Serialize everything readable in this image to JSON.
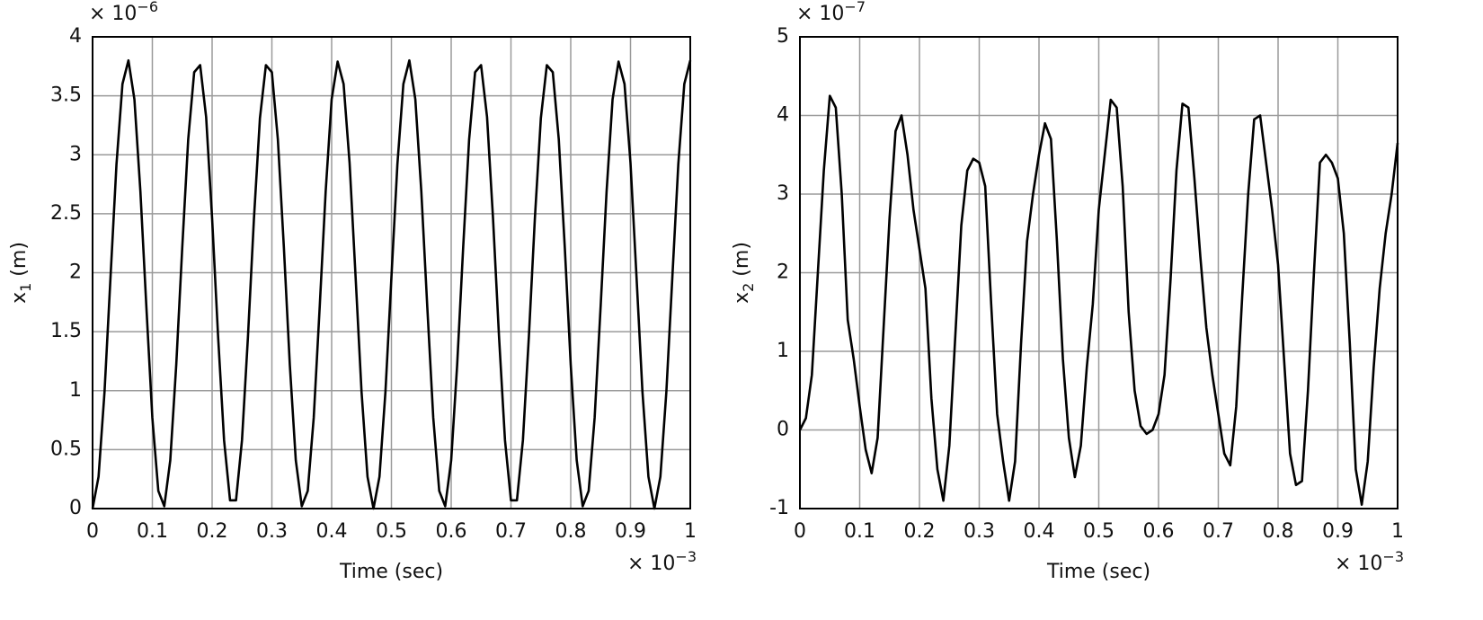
{
  "chart_data": [
    {
      "type": "line",
      "color": "#000000",
      "grid": true,
      "y_multiplier": {
        "base": "× 10",
        "exponent": "−6"
      },
      "x_multiplier": {
        "base": "× 10",
        "exponent": "−3"
      },
      "ylabel": {
        "base": "x",
        "sub": "1",
        "rest": " (m)"
      },
      "xlabel": "Time (sec)",
      "xlim": [
        0,
        1
      ],
      "xticks": [
        0,
        0.1,
        0.2,
        0.3,
        0.4,
        0.5,
        0.6,
        0.7,
        0.8,
        0.9,
        1
      ],
      "ylim": [
        0,
        4
      ],
      "yticks": [
        0,
        0.5,
        1,
        1.5,
        2,
        2.5,
        3,
        3.5,
        4
      ],
      "x": [
        0,
        0.01,
        0.02,
        0.03,
        0.04,
        0.05,
        0.06,
        0.07,
        0.08,
        0.09,
        0.1,
        0.11,
        0.12,
        0.13,
        0.14,
        0.15,
        0.16,
        0.17,
        0.18,
        0.19,
        0.2,
        0.21,
        0.22,
        0.23,
        0.24,
        0.25,
        0.26,
        0.27,
        0.28,
        0.29,
        0.3,
        0.31,
        0.32,
        0.33,
        0.34,
        0.35,
        0.36,
        0.37,
        0.38,
        0.39,
        0.4,
        0.41,
        0.42,
        0.43,
        0.44,
        0.45,
        0.46,
        0.47,
        0.48,
        0.49,
        0.5,
        0.51,
        0.52,
        0.53,
        0.54,
        0.55,
        0.56,
        0.57,
        0.58,
        0.59,
        0.6,
        0.61,
        0.62,
        0.63,
        0.64,
        0.65,
        0.66,
        0.67,
        0.68,
        0.69,
        0.7,
        0.71,
        0.72,
        0.73,
        0.74,
        0.75,
        0.76,
        0.77,
        0.78,
        0.79,
        0.8,
        0.81,
        0.82,
        0.83,
        0.84,
        0.85,
        0.86,
        0.87,
        0.88,
        0.89,
        0.9,
        0.91,
        0.92,
        0.93,
        0.94,
        0.95,
        0.96,
        0.97,
        0.98,
        0.99,
        1
      ],
      "values": [
        0,
        0.27,
        0.99,
        1.96,
        2.92,
        3.6,
        3.8,
        3.47,
        2.69,
        1.71,
        0.77,
        0.15,
        0.02,
        0.41,
        1.22,
        2.21,
        3.13,
        3.7,
        3.76,
        3.32,
        2.46,
        1.46,
        0.58,
        0.07,
        0.07,
        0.58,
        1.46,
        2.46,
        3.31,
        3.76,
        3.7,
        3.13,
        2.22,
        1.22,
        0.41,
        0.02,
        0.15,
        0.77,
        1.71,
        2.69,
        3.47,
        3.79,
        3.6,
        2.93,
        1.97,
        0.99,
        0.27,
        0,
        0.27,
        0.99,
        1.96,
        2.92,
        3.6,
        3.8,
        3.47,
        2.69,
        1.71,
        0.77,
        0.15,
        0.02,
        0.41,
        1.22,
        2.21,
        3.13,
        3.7,
        3.76,
        3.32,
        2.46,
        1.46,
        0.58,
        0.07,
        0.07,
        0.58,
        1.46,
        2.46,
        3.31,
        3.76,
        3.7,
        3.13,
        2.22,
        1.22,
        0.41,
        0.02,
        0.15,
        0.77,
        1.71,
        2.69,
        3.47,
        3.79,
        3.6,
        2.93,
        1.97,
        0.99,
        0.27,
        0,
        0.27,
        0.99,
        1.96,
        2.92,
        3.6,
        3.8
      ]
    },
    {
      "type": "line",
      "color": "#000000",
      "grid": true,
      "y_multiplier": {
        "base": "× 10",
        "exponent": "−7"
      },
      "x_multiplier": {
        "base": "× 10",
        "exponent": "−3"
      },
      "ylabel": {
        "base": "x",
        "sub": "2",
        "rest": " (m)"
      },
      "xlabel": "Time (sec)",
      "xlim": [
        0,
        1
      ],
      "xticks": [
        0,
        0.1,
        0.2,
        0.3,
        0.4,
        0.5,
        0.6,
        0.7,
        0.8,
        0.9,
        1
      ],
      "ylim": [
        -1,
        5
      ],
      "yticks": [
        -1,
        0,
        1,
        2,
        3,
        4,
        5
      ],
      "x": [
        0,
        0.01,
        0.02,
        0.03,
        0.04,
        0.05,
        0.06,
        0.07,
        0.08,
        0.09,
        0.1,
        0.11,
        0.12,
        0.13,
        0.14,
        0.15,
        0.16,
        0.17,
        0.18,
        0.19,
        0.2,
        0.21,
        0.22,
        0.23,
        0.24,
        0.25,
        0.26,
        0.27,
        0.28,
        0.29,
        0.3,
        0.31,
        0.32,
        0.33,
        0.34,
        0.35,
        0.36,
        0.37,
        0.38,
        0.39,
        0.4,
        0.41,
        0.42,
        0.43,
        0.44,
        0.45,
        0.46,
        0.47,
        0.48,
        0.49,
        0.5,
        0.51,
        0.52,
        0.53,
        0.54,
        0.55,
        0.56,
        0.57,
        0.58,
        0.59,
        0.6,
        0.61,
        0.62,
        0.63,
        0.64,
        0.65,
        0.66,
        0.67,
        0.68,
        0.69,
        0.7,
        0.71,
        0.72,
        0.73,
        0.74,
        0.75,
        0.76,
        0.77,
        0.78,
        0.79,
        0.8,
        0.81,
        0.82,
        0.83,
        0.84,
        0.85,
        0.86,
        0.87,
        0.88,
        0.89,
        0.9,
        0.91,
        0.92,
        0.93,
        0.94,
        0.95,
        0.96,
        0.97,
        0.98,
        0.99,
        1
      ],
      "values": [
        0,
        0.15,
        0.7,
        2.0,
        3.3,
        4.25,
        4.1,
        3.0,
        1.4,
        0.9,
        0.3,
        -0.25,
        -0.55,
        -0.1,
        1.3,
        2.7,
        3.8,
        4.0,
        3.5,
        2.8,
        2.3,
        1.8,
        0.4,
        -0.5,
        -0.9,
        -0.2,
        1.2,
        2.6,
        3.3,
        3.45,
        3.4,
        3.1,
        1.6,
        0.2,
        -0.4,
        -0.9,
        -0.4,
        1.1,
        2.4,
        3.0,
        3.5,
        3.9,
        3.7,
        2.4,
        0.9,
        -0.1,
        -0.6,
        -0.2,
        0.8,
        1.6,
        2.8,
        3.5,
        4.2,
        4.1,
        3.1,
        1.5,
        0.5,
        0.05,
        -0.05,
        0.0,
        0.2,
        0.7,
        1.9,
        3.3,
        4.15,
        4.1,
        3.2,
        2.2,
        1.3,
        0.7,
        0.2,
        -0.3,
        -0.45,
        0.3,
        1.7,
        3.0,
        3.95,
        4.0,
        3.4,
        2.8,
        2.1,
        0.9,
        -0.3,
        -0.7,
        -0.65,
        0.5,
        2.0,
        3.4,
        3.5,
        3.4,
        3.2,
        2.5,
        1.1,
        -0.5,
        -0.95,
        -0.4,
        0.8,
        1.8,
        2.5,
        3.0,
        3.65
      ]
    }
  ]
}
